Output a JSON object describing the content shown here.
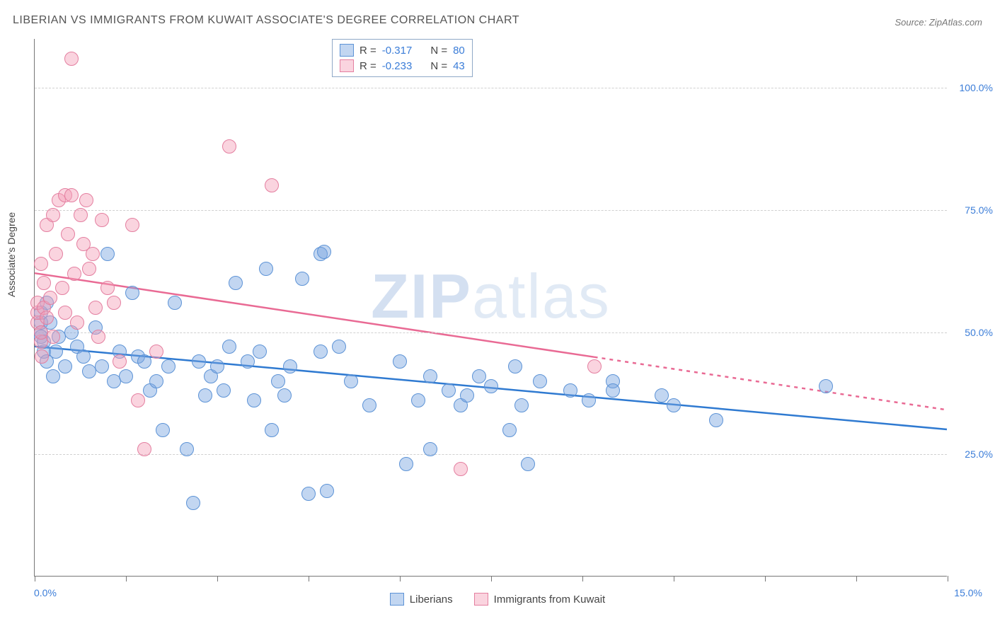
{
  "chart": {
    "type": "scatter",
    "title": "LIBERIAN VS IMMIGRANTS FROM KUWAIT ASSOCIATE'S DEGREE CORRELATION CHART",
    "source_label": "Source: ZipAtlas.com",
    "y_axis_label": "Associate's Degree",
    "x_min_label": "0.0%",
    "x_max_label": "15.0%",
    "xlim": [
      0,
      15
    ],
    "ylim": [
      0,
      110
    ],
    "y_gridlines": [
      25,
      50,
      75,
      100
    ],
    "y_tick_labels": [
      "25.0%",
      "50.0%",
      "75.0%",
      "100.0%"
    ],
    "x_tick_positions": [
      0,
      1.5,
      3.0,
      4.5,
      6.0,
      7.5,
      9.0,
      10.5,
      12.0,
      13.5,
      15.0
    ],
    "background_color": "#ffffff",
    "grid_color": "#d0d0d0",
    "axis_color": "#777777",
    "tick_label_color": "#3b7dd8",
    "marker_radius": 10,
    "marker_stroke_width": 1.4,
    "trend_line_width": 2.5,
    "watermark": {
      "text_a": "ZIP",
      "text_b": "atlas",
      "color_a": "rgba(120,160,210,0.32)",
      "color_b": "rgba(120,160,210,0.22)"
    },
    "series": [
      {
        "name": "Liberians",
        "fill": "rgba(120,165,225,0.45)",
        "stroke": "#5d93d6",
        "trend_color": "#2f7ad1",
        "trend": {
          "x1": 0,
          "y1": 47,
          "x2": 15,
          "y2": 30
        },
        "trend_dashed_from_x": null,
        "stats": {
          "R": "-0.317",
          "N": "80"
        },
        "points": [
          [
            0.1,
            54
          ],
          [
            0.1,
            50
          ],
          [
            0.1,
            49
          ],
          [
            0.1,
            52
          ],
          [
            0.15,
            46
          ],
          [
            0.15,
            48
          ],
          [
            0.2,
            56
          ],
          [
            0.2,
            44
          ],
          [
            0.25,
            52
          ],
          [
            0.3,
            41
          ],
          [
            0.35,
            46
          ],
          [
            0.4,
            49
          ],
          [
            0.5,
            43
          ],
          [
            0.6,
            50
          ],
          [
            0.7,
            47
          ],
          [
            0.8,
            45
          ],
          [
            0.9,
            42
          ],
          [
            1.0,
            51
          ],
          [
            1.1,
            43
          ],
          [
            1.2,
            66
          ],
          [
            1.3,
            40
          ],
          [
            1.4,
            46
          ],
          [
            1.5,
            41
          ],
          [
            1.6,
            58
          ],
          [
            1.7,
            45
          ],
          [
            1.8,
            44
          ],
          [
            1.9,
            38
          ],
          [
            2.0,
            40
          ],
          [
            2.1,
            30
          ],
          [
            2.2,
            43
          ],
          [
            2.3,
            56
          ],
          [
            2.5,
            26
          ],
          [
            2.6,
            15
          ],
          [
            2.7,
            44
          ],
          [
            2.8,
            37
          ],
          [
            2.9,
            41
          ],
          [
            3.0,
            43
          ],
          [
            3.1,
            38
          ],
          [
            3.2,
            47
          ],
          [
            3.3,
            60
          ],
          [
            3.5,
            44
          ],
          [
            3.6,
            36
          ],
          [
            3.7,
            46
          ],
          [
            3.8,
            63
          ],
          [
            4.0,
            40
          ],
          [
            4.1,
            37
          ],
          [
            4.2,
            43
          ],
          [
            4.4,
            61
          ],
          [
            4.5,
            17
          ],
          [
            4.7,
            46
          ],
          [
            4.7,
            66
          ],
          [
            4.75,
            66.5
          ],
          [
            4.8,
            17.5
          ],
          [
            5.0,
            47
          ],
          [
            5.2,
            40
          ],
          [
            5.5,
            35
          ],
          [
            6.0,
            44
          ],
          [
            6.1,
            23
          ],
          [
            6.3,
            36
          ],
          [
            6.5,
            41
          ],
          [
            6.8,
            38
          ],
          [
            7.0,
            35
          ],
          [
            7.1,
            37
          ],
          [
            7.3,
            41
          ],
          [
            7.5,
            39
          ],
          [
            7.8,
            30
          ],
          [
            7.9,
            43
          ],
          [
            8.0,
            35
          ],
          [
            8.1,
            23
          ],
          [
            8.3,
            40
          ],
          [
            8.8,
            38
          ],
          [
            9.1,
            36
          ],
          [
            9.5,
            40
          ],
          [
            10.3,
            37
          ],
          [
            10.5,
            35
          ],
          [
            11.2,
            32
          ],
          [
            13.0,
            39
          ],
          [
            9.5,
            38
          ],
          [
            6.5,
            26
          ],
          [
            3.9,
            30
          ]
        ]
      },
      {
        "name": "Immigrants from Kuwait",
        "fill": "rgba(245,160,185,0.45)",
        "stroke": "#e47fa0",
        "trend_color": "#e96a94",
        "trend": {
          "x1": 0,
          "y1": 62,
          "x2": 15,
          "y2": 34
        },
        "trend_dashed_from_x": 9.2,
        "stats": {
          "R": "-0.233",
          "N": "43"
        },
        "points": [
          [
            0.05,
            52
          ],
          [
            0.05,
            54
          ],
          [
            0.05,
            56
          ],
          [
            0.1,
            48
          ],
          [
            0.1,
            50
          ],
          [
            0.1,
            64
          ],
          [
            0.12,
            45
          ],
          [
            0.15,
            60
          ],
          [
            0.15,
            55
          ],
          [
            0.2,
            53
          ],
          [
            0.2,
            72
          ],
          [
            0.25,
            57
          ],
          [
            0.3,
            74
          ],
          [
            0.3,
            49
          ],
          [
            0.35,
            66
          ],
          [
            0.4,
            77
          ],
          [
            0.45,
            59
          ],
          [
            0.5,
            78
          ],
          [
            0.5,
            54
          ],
          [
            0.55,
            70
          ],
          [
            0.6,
            106
          ],
          [
            0.6,
            78
          ],
          [
            0.65,
            62
          ],
          [
            0.7,
            52
          ],
          [
            0.75,
            74
          ],
          [
            0.8,
            68
          ],
          [
            0.85,
            77
          ],
          [
            0.9,
            63
          ],
          [
            0.95,
            66
          ],
          [
            1.0,
            55
          ],
          [
            1.05,
            49
          ],
          [
            1.1,
            73
          ],
          [
            1.2,
            59
          ],
          [
            1.3,
            56
          ],
          [
            1.4,
            44
          ],
          [
            1.6,
            72
          ],
          [
            1.7,
            36
          ],
          [
            1.8,
            26
          ],
          [
            2.0,
            46
          ],
          [
            3.2,
            88
          ],
          [
            3.9,
            80
          ],
          [
            7.0,
            22
          ],
          [
            9.2,
            43
          ]
        ]
      }
    ]
  },
  "stats_legend": {
    "labels": {
      "R": "R =",
      "N": "N ="
    }
  },
  "bottom_legend": {
    "items": [
      "Liberians",
      "Immigrants from Kuwait"
    ]
  }
}
